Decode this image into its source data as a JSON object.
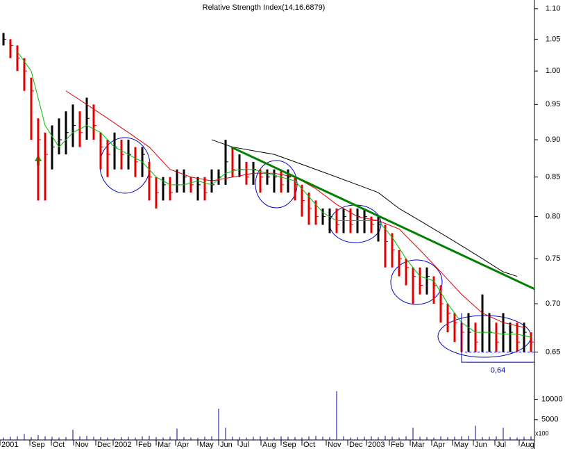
{
  "chart_data": {
    "type": "ohlc",
    "title": "Relative Strength Index(14,16.6879)",
    "log_scale": true,
    "ylim": [
      0.614,
      1.115
    ],
    "yticks": [
      {
        "value": 0.65,
        "label": "0.65"
      },
      {
        "value": 0.7,
        "label": "0.70"
      },
      {
        "value": 0.75,
        "label": "0.75"
      },
      {
        "value": 0.8,
        "label": "0.80"
      },
      {
        "value": 0.85,
        "label": "0.85"
      },
      {
        "value": 0.9,
        "label": "0.90"
      },
      {
        "value": 0.95,
        "label": "0.95"
      },
      {
        "value": 1,
        "label": "1.00"
      },
      {
        "value": 1.05,
        "label": "1.05"
      },
      {
        "value": 1.1,
        "label": "1.10"
      }
    ],
    "xlim": [
      -0.5,
      76.5
    ],
    "xticks": [
      {
        "value": -0.5,
        "label": "2001"
      },
      {
        "value": 3.8,
        "label": "Sep"
      },
      {
        "value": 6.9,
        "label": "Oct"
      },
      {
        "value": 10.1,
        "label": "Nov"
      },
      {
        "value": 13.3,
        "label": "Dec"
      },
      {
        "value": 15.8,
        "label": "2002"
      },
      {
        "value": 19.2,
        "label": "Feb"
      },
      {
        "value": 22,
        "label": "Mar"
      },
      {
        "value": 24.8,
        "label": "Apr"
      },
      {
        "value": 28,
        "label": "May"
      },
      {
        "value": 31,
        "label": "Jun"
      },
      {
        "value": 33.8,
        "label": "Jul"
      },
      {
        "value": 37.1,
        "label": "Aug"
      },
      {
        "value": 40,
        "label": "Sep"
      },
      {
        "value": 43,
        "label": "Oct"
      },
      {
        "value": 46.5,
        "label": "Nov"
      },
      {
        "value": 49.6,
        "label": "Dec"
      },
      {
        "value": 52.3,
        "label": "2003"
      },
      {
        "value": 55.6,
        "label": "Feb"
      },
      {
        "value": 58.6,
        "label": "Mar"
      },
      {
        "value": 61.7,
        "label": "Apr"
      },
      {
        "value": 64.7,
        "label": "May"
      },
      {
        "value": 67.7,
        "label": "Jun"
      },
      {
        "value": 70.8,
        "label": "Jul"
      },
      {
        "value": 74.3,
        "label": "Aug"
      }
    ],
    "up_color": "#000000",
    "down_color": "#e00000",
    "high": [
      1.06,
      1.05,
      1.04,
      1.02,
      0.99,
      0.93,
      0.91,
      0.92,
      0.93,
      0.94,
      0.95,
      0.94,
      0.96,
      0.95,
      0.91,
      0.9,
      0.91,
      0.9,
      0.9,
      0.89,
      0.89,
      0.87,
      0.85,
      0.85,
      0.85,
      0.86,
      0.86,
      0.85,
      0.85,
      0.85,
      0.86,
      0.86,
      0.9,
      0.89,
      0.88,
      0.87,
      0.87,
      0.86,
      0.86,
      0.86,
      0.86,
      0.86,
      0.85,
      0.84,
      0.83,
      0.82,
      0.81,
      0.81,
      0.81,
      0.81,
      0.81,
      0.81,
      0.81,
      0.8,
      0.8,
      0.79,
      0.78,
      0.76,
      0.75,
      0.74,
      0.74,
      0.74,
      0.73,
      0.72,
      0.7,
      0.69,
      0.68,
      0.69,
      0.68,
      0.71,
      0.69,
      0.68,
      0.69,
      0.68,
      0.68,
      0.68,
      0.67
    ],
    "low": [
      1.04,
      1.02,
      1.0,
      0.97,
      0.9,
      0.82,
      0.82,
      0.86,
      0.88,
      0.88,
      0.89,
      0.89,
      0.9,
      0.9,
      0.86,
      0.85,
      0.86,
      0.86,
      0.86,
      0.85,
      0.85,
      0.82,
      0.81,
      0.82,
      0.82,
      0.83,
      0.83,
      0.83,
      0.82,
      0.82,
      0.83,
      0.84,
      0.84,
      0.85,
      0.85,
      0.84,
      0.84,
      0.83,
      0.84,
      0.83,
      0.83,
      0.83,
      0.82,
      0.8,
      0.79,
      0.79,
      0.79,
      0.78,
      0.78,
      0.78,
      0.78,
      0.78,
      0.78,
      0.78,
      0.77,
      0.74,
      0.74,
      0.73,
      0.72,
      0.7,
      0.71,
      0.71,
      0.7,
      0.68,
      0.67,
      0.66,
      0.65,
      0.65,
      0.65,
      0.65,
      0.65,
      0.65,
      0.65,
      0.65,
      0.65,
      0.65,
      0.65
    ],
    "close": [
      1.05,
      1.04,
      1.02,
      1.0,
      0.97,
      0.9,
      0.88,
      0.89,
      0.9,
      0.91,
      0.92,
      0.91,
      0.93,
      0.92,
      0.89,
      0.88,
      0.89,
      0.88,
      0.88,
      0.87,
      0.88,
      0.85,
      0.83,
      0.84,
      0.83,
      0.84,
      0.85,
      0.84,
      0.84,
      0.83,
      0.84,
      0.85,
      0.87,
      0.86,
      0.86,
      0.85,
      0.86,
      0.85,
      0.85,
      0.85,
      0.84,
      0.85,
      0.84,
      0.82,
      0.81,
      0.8,
      0.8,
      0.8,
      0.79,
      0.8,
      0.79,
      0.8,
      0.8,
      0.79,
      0.79,
      0.77,
      0.76,
      0.75,
      0.74,
      0.73,
      0.72,
      0.73,
      0.72,
      0.7,
      0.69,
      0.68,
      0.67,
      0.67,
      0.66,
      0.67,
      0.67,
      0.66,
      0.67,
      0.67,
      0.66,
      0.67,
      0.66
    ],
    "overlays": [
      {
        "color": "#00c000",
        "x": [
          2,
          4,
          6,
          8,
          10,
          12,
          14,
          16,
          18,
          20,
          22,
          24,
          26,
          28,
          30,
          32,
          34,
          36,
          38,
          40,
          42,
          44,
          46,
          48,
          50,
          52,
          54,
          56,
          58,
          60,
          62,
          64,
          66,
          68,
          70,
          72,
          74,
          76
        ],
        "values": [
          1.03,
          1.0,
          0.92,
          0.89,
          0.91,
          0.92,
          0.91,
          0.89,
          0.88,
          0.87,
          0.85,
          0.84,
          0.84,
          0.845,
          0.84,
          0.855,
          0.86,
          0.86,
          0.855,
          0.85,
          0.845,
          0.825,
          0.805,
          0.795,
          0.795,
          0.795,
          0.795,
          0.775,
          0.75,
          0.73,
          0.725,
          0.7,
          0.68,
          0.67,
          0.67,
          0.668,
          0.668,
          0.665
        ]
      },
      {
        "color": "#e00000",
        "x": [
          9,
          12,
          15,
          18,
          21,
          24,
          27,
          30,
          33,
          36,
          39,
          42,
          45,
          48,
          51,
          54,
          57,
          60,
          63,
          66,
          69,
          72,
          75
        ],
        "values": [
          0.97,
          0.95,
          0.93,
          0.91,
          0.89,
          0.86,
          0.85,
          0.845,
          0.85,
          0.855,
          0.855,
          0.85,
          0.835,
          0.815,
          0.8,
          0.795,
          0.785,
          0.76,
          0.735,
          0.71,
          0.69,
          0.68,
          0.675
        ]
      },
      {
        "color": "#000000",
        "x": [
          30,
          33,
          36,
          39,
          42,
          45,
          48,
          51,
          54,
          57,
          60,
          63,
          66,
          69,
          72,
          74
        ],
        "values": [
          0.9,
          0.89,
          0.885,
          0.88,
          0.87,
          0.86,
          0.85,
          0.84,
          0.83,
          0.81,
          0.795,
          0.78,
          0.765,
          0.75,
          0.735,
          0.73
        ]
      },
      {
        "color": "#008000",
        "width": 3,
        "x": [
          32.8,
          76.5
        ],
        "values": [
          0.89,
          0.716
        ]
      }
    ],
    "support": {
      "value": 0.64,
      "label": "0,64",
      "x": 66
    },
    "dashed": {
      "value": 0.65,
      "x": 66.5
    },
    "volume": [
      600,
      800,
      900,
      1500,
      700,
      1200,
      900,
      800,
      600,
      700,
      2500,
      900,
      1000,
      800,
      700,
      600,
      500,
      700,
      800,
      600,
      900,
      1000,
      700,
      600,
      800,
      2800,
      700,
      600,
      500,
      800,
      900,
      7700,
      3000,
      800,
      700,
      600,
      800,
      900,
      700,
      600,
      900,
      800,
      700,
      600,
      900,
      1000,
      800,
      700,
      12000,
      900,
      600,
      700,
      800,
      900,
      700,
      1000,
      800,
      600,
      900,
      3000,
      800,
      700,
      600,
      900,
      700,
      800,
      900,
      1000,
      3500,
      700,
      800,
      900,
      3000,
      700,
      600,
      800,
      900
    ],
    "vlim": [
      0,
      12500
    ],
    "vticks": [
      5000,
      10000
    ],
    "volume_unit": "x100",
    "volume_color": "#0000a0"
  }
}
